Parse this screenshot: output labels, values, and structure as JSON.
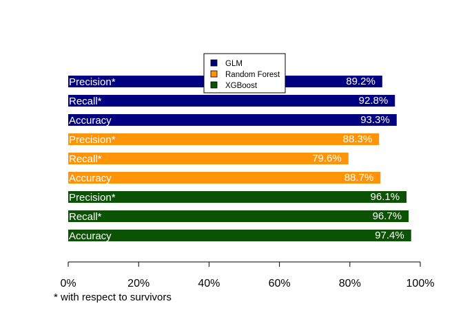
{
  "chart_data": {
    "type": "bar",
    "orientation": "horizontal",
    "title": "",
    "xlabel": "",
    "ylabel": "",
    "xlim": [
      0,
      100
    ],
    "x_ticks": [
      "0%",
      "20%",
      "40%",
      "60%",
      "80%",
      "100%"
    ],
    "x_tick_values": [
      0,
      20,
      40,
      60,
      80,
      100
    ],
    "grid": false,
    "legend_position": "top-center",
    "legend": [
      {
        "name": "GLM",
        "color": "#000080"
      },
      {
        "name": "Random Forest",
        "color": "#FF9408"
      },
      {
        "name": "XGBoost",
        "color": "#0B5205"
      }
    ],
    "groups": [
      {
        "model": "GLM",
        "color": "#000080",
        "bars": [
          {
            "category": "Precision*",
            "value": 89.2,
            "label": "89.2%"
          },
          {
            "category": "Recall*",
            "value": 92.8,
            "label": "92.8%"
          },
          {
            "category": "Accuracy",
            "value": 93.3,
            "label": "93.3%"
          }
        ]
      },
      {
        "model": "Random Forest",
        "color": "#FF9408",
        "bars": [
          {
            "category": "Precision*",
            "value": 88.3,
            "label": "88.3%"
          },
          {
            "category": "Recall*",
            "value": 79.6,
            "label": "79.6%"
          },
          {
            "category": "Accuracy",
            "value": 88.7,
            "label": "88.7%"
          }
        ]
      },
      {
        "model": "XGBoost",
        "color": "#0B5205",
        "bars": [
          {
            "category": "Precision*",
            "value": 96.1,
            "label": "96.1%"
          },
          {
            "category": "Recall*",
            "value": 96.7,
            "label": "96.7%"
          },
          {
            "category": "Accuracy",
            "value": 97.4,
            "label": "97.4%"
          }
        ]
      }
    ],
    "footnote": "* with respect to survivors"
  }
}
